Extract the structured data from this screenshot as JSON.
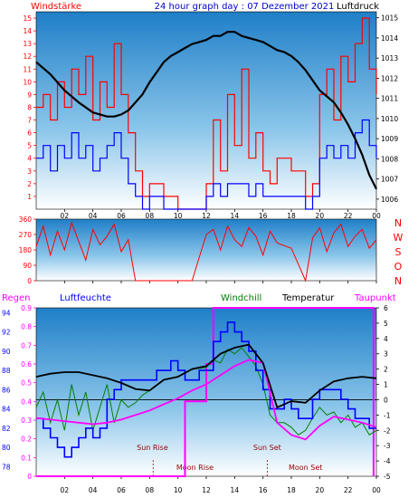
{
  "chart_data": [
    {
      "type": "line",
      "title": "24 hour graph day : 07 Dezember 2021",
      "left_label": "Windstärke",
      "right_label": "Luftdruck",
      "x_ticks": [
        "02",
        "04",
        "06",
        "08",
        "10",
        "12",
        "14",
        "16",
        "18",
        "20",
        "22",
        "00"
      ],
      "left_ticks": [
        "1",
        "2",
        "3",
        "4",
        "5",
        "6",
        "7",
        "8",
        "9",
        "10",
        "11",
        "12",
        "13",
        "14",
        "15"
      ],
      "right_ticks": [
        "1006",
        "1007",
        "1008",
        "1009",
        "1010",
        "1011",
        "1012",
        "1013",
        "1014",
        "1015"
      ],
      "ylim_left": [
        0,
        15.5
      ],
      "ylim_right": [
        1005.5,
        1015.3
      ],
      "series": [
        {
          "name": "Luftdruck",
          "axis": "right",
          "color": "#000000",
          "x": [
            0,
            1,
            2,
            3,
            4,
            5,
            5.5,
            6,
            6.5,
            7,
            7.5,
            8,
            8.5,
            9,
            9.5,
            10,
            10.5,
            11,
            11.5,
            12,
            12.5,
            13,
            13.5,
            14,
            14.5,
            15,
            15.5,
            16,
            16.5,
            17,
            17.5,
            18,
            18.5,
            19,
            19.5,
            20,
            20.5,
            21,
            21.5,
            22,
            22.5,
            23,
            23.5,
            24
          ],
          "y": [
            1012.8,
            1012.2,
            1011.4,
            1010.8,
            1010.3,
            1010.1,
            1010.1,
            1010.2,
            1010.4,
            1010.8,
            1011.2,
            1011.8,
            1012.3,
            1012.8,
            1013.1,
            1013.3,
            1013.5,
            1013.7,
            1013.8,
            1013.9,
            1014.1,
            1014.1,
            1014.3,
            1014.3,
            1014.1,
            1014.0,
            1013.9,
            1013.8,
            1013.6,
            1013.4,
            1013.3,
            1013.1,
            1012.8,
            1012.4,
            1011.9,
            1011.4,
            1011.1,
            1010.8,
            1010.3,
            1009.7,
            1009.0,
            1008.2,
            1007.2,
            1006.5
          ]
        },
        {
          "name": "Windstärke max",
          "axis": "left",
          "color": "#ff0000",
          "x": [
            0,
            0.5,
            1,
            1.5,
            2,
            2.5,
            3,
            3.5,
            4,
            4.5,
            5,
            5.5,
            6,
            6.5,
            7,
            7.5,
            8,
            9,
            10,
            11,
            12,
            12.5,
            13,
            13.5,
            14,
            14.5,
            15,
            15.5,
            16,
            16.5,
            17,
            18,
            19,
            19.5,
            20,
            20.5,
            21,
            21.5,
            22,
            22.5,
            23,
            23.5,
            24
          ],
          "y": [
            8,
            9,
            7,
            10,
            8,
            11,
            9,
            12,
            7,
            10,
            8,
            13,
            9,
            6,
            3,
            1,
            2,
            1,
            0,
            0,
            2,
            7,
            3,
            9,
            5,
            11,
            4,
            6,
            3,
            2,
            4,
            3,
            1,
            2,
            9,
            11,
            7,
            12,
            10,
            13,
            15,
            11,
            9
          ]
        },
        {
          "name": "Windstärke mittel",
          "axis": "left",
          "color": "#0000ff",
          "x": [
            0,
            0.5,
            1,
            1.5,
            2,
            2.5,
            3,
            3.5,
            4,
            4.5,
            5,
            5.5,
            6,
            6.5,
            7,
            7.5,
            8,
            9,
            10,
            11,
            12,
            12.5,
            13,
            13.5,
            14,
            14.5,
            15,
            15.5,
            16,
            16.5,
            17,
            18,
            19,
            19.5,
            20,
            20.5,
            21,
            21.5,
            22,
            22.5,
            23,
            23.5,
            24
          ],
          "y": [
            4,
            5,
            3,
            5,
            4,
            6,
            4,
            5,
            3,
            4,
            5,
            6,
            4,
            2,
            1,
            0,
            1,
            0,
            0,
            0,
            1,
            2,
            1,
            2,
            2,
            2,
            1,
            2,
            1,
            1,
            1,
            1,
            0,
            1,
            4,
            5,
            4,
            5,
            4,
            6,
            7,
            5,
            4
          ]
        }
      ]
    },
    {
      "type": "scatter",
      "title": "",
      "left_ticks": [
        "0",
        "90",
        "180",
        "270",
        "360"
      ],
      "right_labels": [
        "N",
        "W",
        "S",
        "O",
        "N"
      ],
      "x_ticks": [
        "02",
        "04",
        "06",
        "08",
        "10",
        "12",
        "14",
        "16",
        "18",
        "20",
        "22",
        "00"
      ],
      "ylim": [
        0,
        360
      ],
      "series": [
        {
          "name": "Windrichtung",
          "color": "#ff0000",
          "x": [
            0,
            0.5,
            1,
            1.5,
            2,
            2.5,
            3,
            3.5,
            4,
            4.5,
            5,
            5.5,
            6,
            6.5,
            7,
            7.5,
            8,
            9,
            10,
            11,
            12,
            12.5,
            13,
            13.5,
            14,
            14.5,
            15,
            15.5,
            16,
            16.5,
            17,
            18,
            19,
            19.5,
            20,
            20.5,
            21,
            21.5,
            22,
            22.5,
            23,
            23.5,
            24
          ],
          "y": [
            200,
            320,
            150,
            290,
            180,
            340,
            230,
            120,
            300,
            210,
            260,
            330,
            170,
            240,
            0,
            0,
            0,
            0,
            0,
            0,
            270,
            300,
            180,
            320,
            240,
            200,
            310,
            260,
            150,
            290,
            220,
            190,
            0,
            250,
            310,
            170,
            280,
            330,
            200,
            260,
            300,
            190,
            240
          ]
        }
      ]
    },
    {
      "type": "line",
      "title": "",
      "legend": [
        "Regen",
        "Luftfeuchte",
        "Windchill",
        "Temperatur",
        "Taupunkt"
      ],
      "legend_colors": [
        "#ff00ff",
        "#0000ff",
        "#008000",
        "#000000",
        "#ff00ff"
      ],
      "regen_ticks": [
        "0",
        "0.1",
        "0.2",
        "0.3",
        "0.4",
        "0.5",
        "0.6",
        "0.7",
        "0.8",
        "0.9"
      ],
      "humidity_ticks": [
        "78",
        "80",
        "82",
        "84",
        "86",
        "88",
        "90",
        "92",
        "94"
      ],
      "temp_ticks": [
        "-5",
        "-4",
        "-3",
        "-2",
        "-1",
        "0",
        "1",
        "2",
        "3",
        "4",
        "5",
        "6"
      ],
      "x_ticks": [
        "02",
        "04",
        "06",
        "08",
        "10",
        "12",
        "14",
        "16",
        "18",
        "20",
        "22",
        "00"
      ],
      "ylim_temp": [
        -5,
        6
      ],
      "ylim_humidity": [
        77,
        94.5
      ],
      "annotations": [
        "Sun Rise",
        "Moon Rise",
        "Sun Set",
        "Moon Set"
      ],
      "series": [
        {
          "name": "Temperatur",
          "axis": "temp",
          "color": "#000000",
          "x": [
            0,
            1,
            2,
            3,
            4,
            5,
            6,
            7,
            8,
            9,
            10,
            11,
            12,
            13,
            14,
            15,
            16,
            17,
            18,
            19,
            20,
            21,
            22,
            23,
            24
          ],
          "y": [
            1.5,
            1.7,
            1.8,
            1.8,
            1.6,
            1.4,
            1.1,
            0.7,
            0.6,
            1.3,
            1.5,
            2.0,
            2.2,
            3.0,
            3.4,
            3.6,
            2.4,
            -0.5,
            -0.1,
            -0.2,
            0.6,
            1.2,
            1.4,
            1.5,
            1.4
          ]
        },
        {
          "name": "Windchill",
          "axis": "temp",
          "color": "#008000",
          "x": [
            0,
            0.5,
            1,
            1.5,
            2,
            2.5,
            3,
            3.5,
            4,
            4.5,
            5,
            5.5,
            6,
            6.5,
            7,
            7.5,
            8,
            9,
            10,
            11,
            12,
            12.5,
            13,
            13.5,
            14,
            14.5,
            15,
            15.5,
            16,
            16.5,
            17,
            17.5,
            18,
            18.5,
            19,
            19.5,
            20,
            20.5,
            21,
            21.5,
            22,
            22.5,
            23,
            23.5,
            24
          ],
          "y": [
            -0.5,
            0.5,
            -1.5,
            0.0,
            -2.0,
            1.0,
            -1.0,
            0.5,
            -2.0,
            -0.5,
            1.0,
            -1.5,
            0.0,
            -0.5,
            -0.2,
            0.3,
            0.6,
            1.3,
            1.5,
            2.0,
            2.1,
            2.6,
            2.4,
            3.3,
            3.0,
            3.4,
            2.8,
            2.2,
            1.0,
            -1.0,
            -1.5,
            -1.5,
            -1.8,
            -2.3,
            -2.0,
            -1.2,
            -0.5,
            -1.0,
            -0.8,
            -1.5,
            -1.0,
            -1.8,
            -1.5,
            -2.3,
            -2.0
          ]
        },
        {
          "name": "Taupunkt",
          "axis": "temp",
          "color": "#ff00ff",
          "x": [
            0,
            1,
            2,
            3,
            4,
            5,
            6,
            7,
            8,
            9,
            10,
            11,
            12,
            13,
            14,
            15,
            16,
            17,
            18,
            19,
            20,
            21,
            22,
            23,
            24
          ],
          "y": [
            -1.2,
            -1.3,
            -1.4,
            -1.5,
            -1.6,
            -1.5,
            -1.3,
            -1.0,
            -0.7,
            -0.3,
            0.1,
            0.6,
            1.0,
            1.6,
            2.2,
            2.6,
            2.4,
            -1.5,
            -2.3,
            -2.6,
            -1.7,
            -1.1,
            -1.3,
            -1.5,
            -1.8
          ]
        },
        {
          "name": "Luftfeuchte",
          "axis": "humidity",
          "color": "#0000ff",
          "x": [
            0,
            0.5,
            1,
            1.5,
            2,
            2.5,
            3,
            3.5,
            4,
            4.5,
            5,
            5.5,
            6,
            6.5,
            7,
            7.5,
            8,
            8.5,
            9,
            9.5,
            10,
            10.5,
            11,
            11.5,
            12,
            12.5,
            13,
            13.5,
            14,
            14.5,
            15,
            15.5,
            16,
            16.5,
            17,
            17.5,
            18,
            18.5,
            19,
            19.5,
            20,
            20.5,
            21,
            21.5,
            22,
            22.5,
            23,
            23.5,
            24
          ],
          "y": [
            83,
            82,
            81,
            80,
            79,
            80,
            81,
            82,
            81,
            82,
            85,
            86,
            87,
            87,
            87,
            87,
            87,
            88,
            88,
            89,
            88,
            87,
            87,
            88,
            88,
            91,
            92,
            93,
            92,
            91,
            90,
            88,
            86,
            84,
            84,
            85,
            84,
            83,
            83,
            85,
            86,
            86,
            86,
            85,
            84,
            83,
            83,
            82,
            82
          ]
        }
      ],
      "regen": {
        "name": "Regen",
        "color": "#ff00ff",
        "x": [
          0,
          1,
          2,
          3,
          4,
          5,
          6,
          7,
          8,
          9,
          10,
          10.5,
          11,
          11.5,
          12,
          12.5,
          13,
          14,
          15,
          16,
          17,
          18,
          19,
          20,
          21,
          22,
          23,
          23.8
        ],
        "y": [
          0,
          0,
          0,
          0,
          0,
          0,
          0,
          0,
          0,
          0,
          0,
          0.4,
          0.4,
          0.4,
          0.6,
          0.9,
          0.9,
          0.9,
          0.9,
          0.9,
          0.9,
          0.9,
          0.9,
          0.9,
          0.9,
          0.9,
          0.9,
          0
        ]
      }
    }
  ],
  "colors": {
    "background": "#ffffff",
    "accent_red": "#ff0000",
    "accent_blue": "#0000ff",
    "accent_magenta": "#ff00ff",
    "accent_green": "#008000"
  }
}
